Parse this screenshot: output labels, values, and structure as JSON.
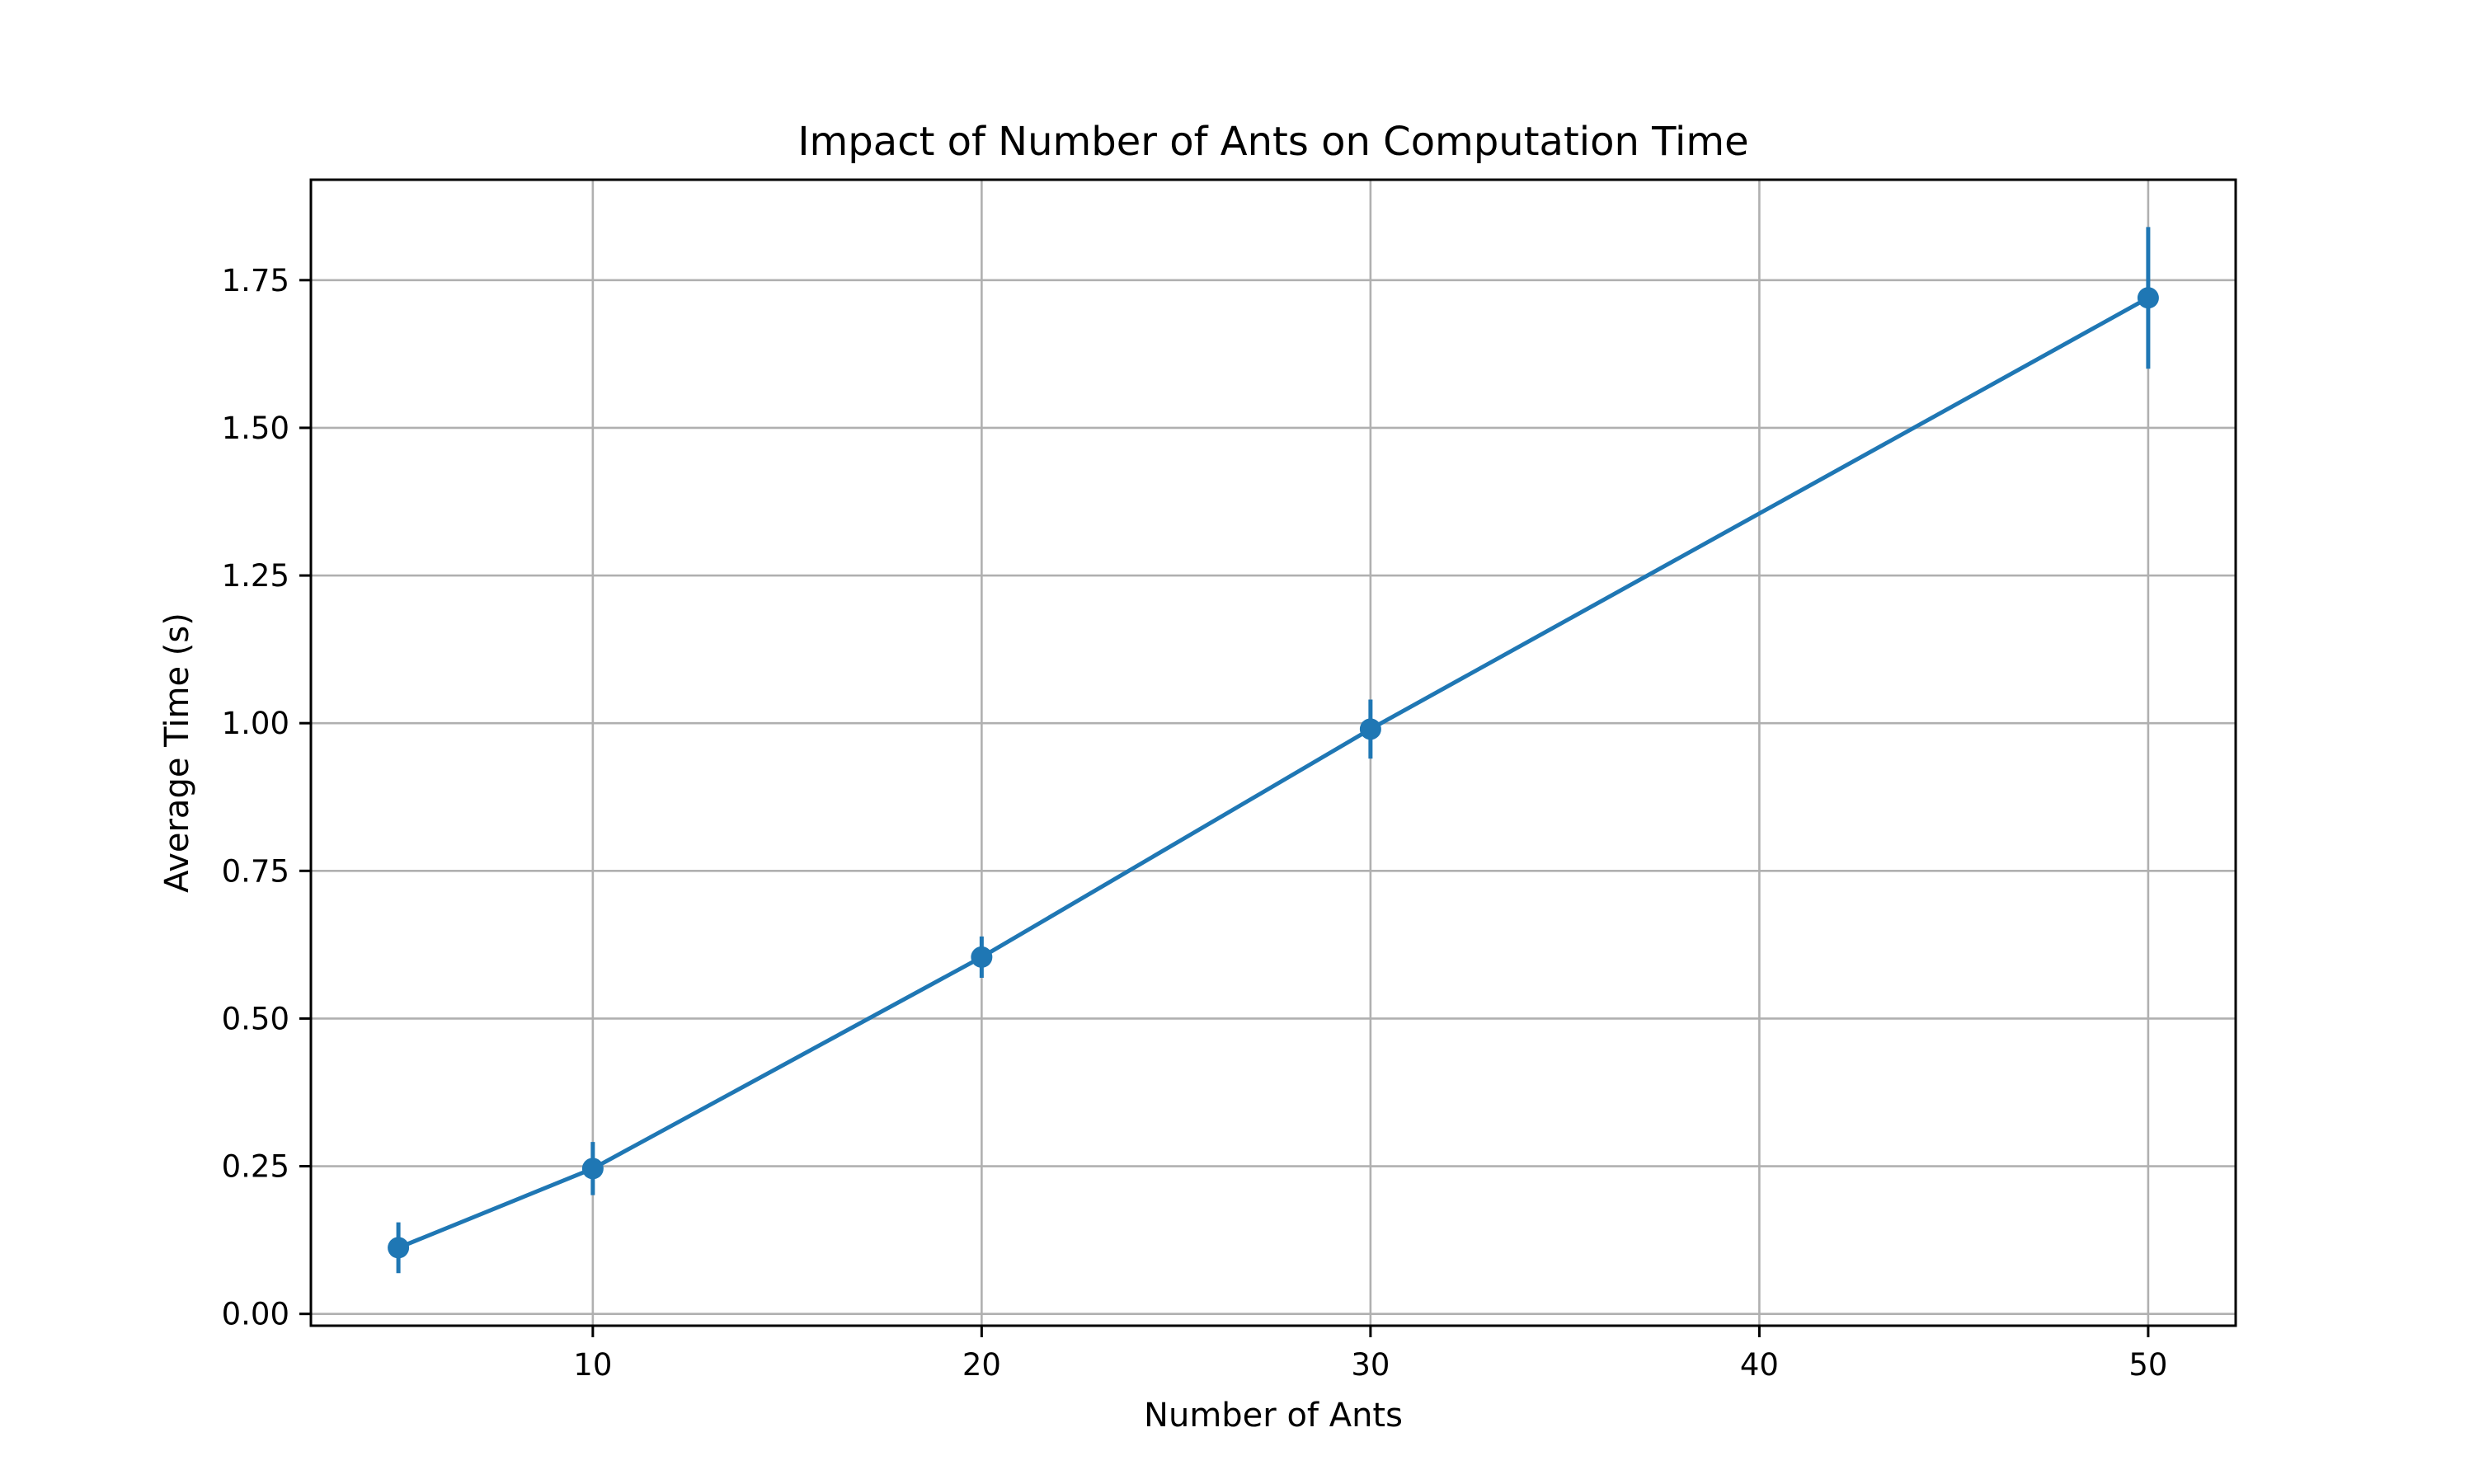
{
  "chart_data": {
    "type": "line",
    "title": "Impact of Number of Ants on Computation Time",
    "xlabel": "Number of Ants",
    "ylabel": "Average Time (s)",
    "xlim": [
      2.75,
      52.25
    ],
    "ylim": [
      -0.02,
      1.92
    ],
    "xticks": [
      10,
      20,
      30,
      40,
      50
    ],
    "xtick_labels": [
      "10",
      "20",
      "30",
      "40",
      "50"
    ],
    "yticks": [
      0.0,
      0.25,
      0.5,
      0.75,
      1.0,
      1.25,
      1.5,
      1.75
    ],
    "ytick_labels": [
      "0.00",
      "0.25",
      "0.50",
      "0.75",
      "1.00",
      "1.25",
      "1.50",
      "1.75"
    ],
    "grid": true,
    "series": [
      {
        "x": [
          5,
          10,
          20,
          30,
          50
        ],
        "y": [
          0.112,
          0.246,
          0.604,
          0.99,
          1.72
        ],
        "yerr": [
          0.043,
          0.045,
          0.035,
          0.05,
          0.12
        ],
        "color": "#1f77b4",
        "marker": "circle"
      }
    ]
  }
}
